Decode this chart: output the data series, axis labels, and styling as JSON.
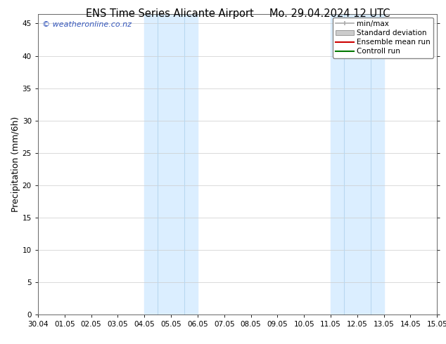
{
  "title_left": "ENS Time Series Alicante Airport",
  "title_right": "Mo. 29.04.2024 12 UTC",
  "ylabel": "Precipitation (mm/6h)",
  "watermark": "© weatheronline.co.nz",
  "x_tick_labels": [
    "30.04",
    "01.05",
    "02.05",
    "03.05",
    "04.05",
    "05.05",
    "06.05",
    "07.05",
    "08.05",
    "09.05",
    "10.05",
    "11.05",
    "12.05",
    "13.05",
    "14.05",
    "15.05"
  ],
  "x_tick_positions": [
    0,
    1,
    2,
    3,
    4,
    5,
    6,
    7,
    8,
    9,
    10,
    11,
    12,
    13,
    14,
    15
  ],
  "ylim": [
    0,
    46.5
  ],
  "y_ticks": [
    0,
    5,
    10,
    15,
    20,
    25,
    30,
    35,
    40,
    45
  ],
  "shaded_regions": [
    {
      "x_start": 4.0,
      "x_end": 6.0,
      "color": "#dbeeff"
    },
    {
      "x_start": 11.0,
      "x_end": 13.0,
      "color": "#dbeeff"
    }
  ],
  "vertical_lines": [
    {
      "x": 4.5,
      "color": "#b8d8f0",
      "lw": 0.8
    },
    {
      "x": 5.5,
      "color": "#b8d8f0",
      "lw": 0.8
    },
    {
      "x": 11.5,
      "color": "#b8d8f0",
      "lw": 0.8
    },
    {
      "x": 12.5,
      "color": "#b8d8f0",
      "lw": 0.8
    }
  ],
  "legend_entries": [
    {
      "label": "min/max",
      "color": "#aaaaaa",
      "type": "line_with_caps"
    },
    {
      "label": "Standard deviation",
      "color": "#cccccc",
      "type": "bar"
    },
    {
      "label": "Ensemble mean run",
      "color": "#cc0000",
      "type": "line"
    },
    {
      "label": "Controll run",
      "color": "#007700",
      "type": "line"
    }
  ],
  "bg_color": "#ffffff",
  "axes_bg_color": "#ffffff",
  "grid_color": "#cccccc",
  "title_fontsize": 10.5,
  "label_fontsize": 9,
  "tick_fontsize": 7.5,
  "watermark_color": "#3355bb",
  "legend_fontsize": 7.5
}
